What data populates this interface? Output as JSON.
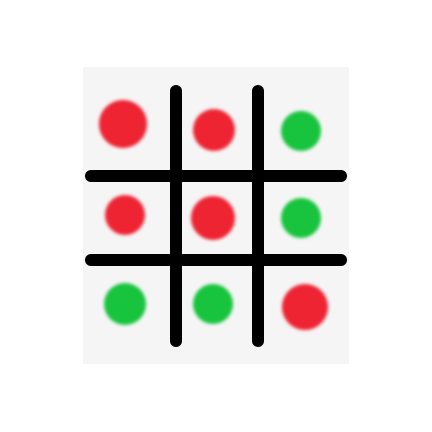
{
  "game": {
    "type": "tic-tac-toe-style grid with colored dots",
    "colors": {
      "red": "#ee2433",
      "green": "#18c43e",
      "grid": "#000000",
      "board": "#f5f5f5"
    },
    "cells": [
      {
        "row": 0,
        "col": 0,
        "color": "red"
      },
      {
        "row": 0,
        "col": 1,
        "color": "red"
      },
      {
        "row": 0,
        "col": 2,
        "color": "green"
      },
      {
        "row": 1,
        "col": 0,
        "color": "red"
      },
      {
        "row": 1,
        "col": 1,
        "color": "red"
      },
      {
        "row": 1,
        "col": 2,
        "color": "green"
      },
      {
        "row": 2,
        "col": 0,
        "color": "green"
      },
      {
        "row": 2,
        "col": 1,
        "color": "green"
      },
      {
        "row": 2,
        "col": 2,
        "color": "red"
      }
    ]
  }
}
